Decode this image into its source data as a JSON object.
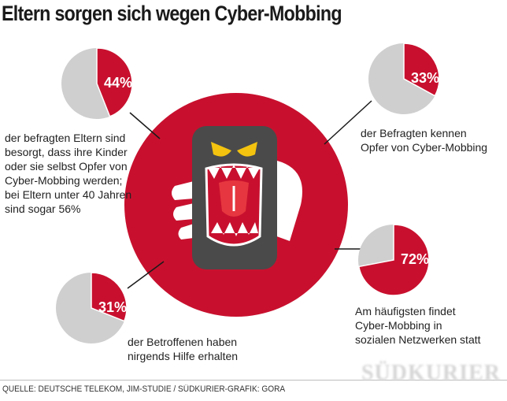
{
  "title": "Eltern sorgen sich wegen Cyber-Mobbing",
  "colors": {
    "accent": "#c8102e",
    "neutral": "#cfcfcf",
    "phone": "#4a4a4a",
    "eyes": "#f3c30f"
  },
  "chart_data": {
    "type": "pie",
    "charts": [
      {
        "value": 44,
        "label": "44%",
        "caption": "der befragten Eltern sind\nbesorgt, dass ihre Kinder\noder sie selbst Opfer von\nCyber-Mobbing werden;\nbei Eltern unter 40 Jahren\nsind sogar 56%"
      },
      {
        "value": 33,
        "label": "33%",
        "caption": "der Befragten kennen\nOpfer von Cyber-Mobbing"
      },
      {
        "value": 31,
        "label": "31%",
        "caption": "der Betroffenen haben\nnirgends Hilfe erhalten"
      },
      {
        "value": 72,
        "label": "72%",
        "caption": "Am häufigsten findet\nCyber-Mobbing in\nsozialen Netzwerken statt"
      }
    ]
  },
  "footer": {
    "source": "QUELLE: DEUTSCHE TELEKOM, JIM-STUDIE / SÜDKURIER-GRAFIK: GORA",
    "brand": "SÜDKURIER"
  }
}
